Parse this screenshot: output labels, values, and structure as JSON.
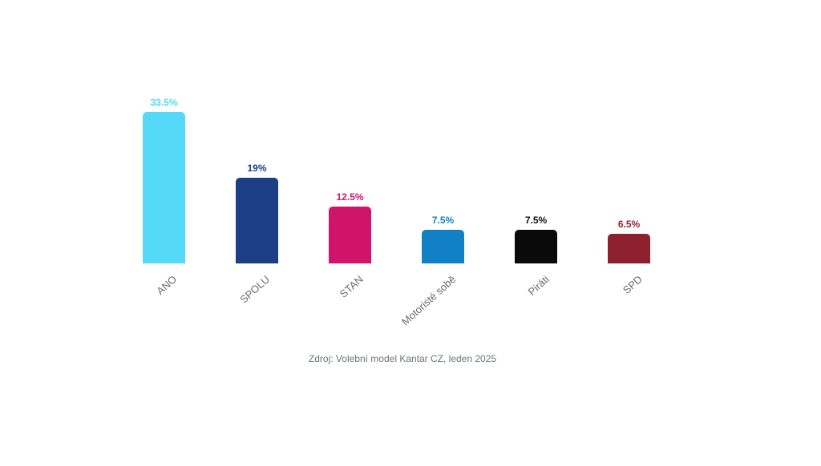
{
  "chart_data": {
    "type": "bar",
    "title": "",
    "categories": [
      "ANO",
      "SPOLU",
      "STAN",
      "Motoristé sobě",
      "Piráti",
      "SPD"
    ],
    "values": [
      33.5,
      19,
      12.5,
      7.5,
      7.5,
      6.5
    ],
    "value_labels": [
      "33.5%",
      "19%",
      "12.5%",
      "7.5%",
      "7.5%",
      "6.5%"
    ],
    "bar_colors": [
      "#55d9f8",
      "#1c3e86",
      "#d1146b",
      "#1180c4",
      "#0a0a0a",
      "#8e212e"
    ],
    "value_label_colors": [
      "#55d9f8",
      "#1c3e86",
      "#d1146b",
      "#1180c4",
      "#111111",
      "#8e212e"
    ],
    "xlabel": "",
    "ylabel": "",
    "ylim": [
      0,
      35
    ],
    "grid": false,
    "legend": "none",
    "axis_lines": "none",
    "value_label_position": "above-bar",
    "category_label_rotation_deg": -42,
    "category_label_color": "#6b6b6b",
    "source": "Zdroj: Volební model Kantar CZ, leden 2025"
  }
}
